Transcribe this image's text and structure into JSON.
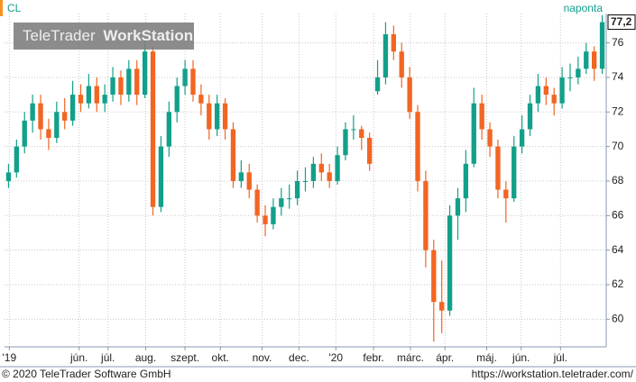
{
  "chart_data": {
    "type": "candlestick",
    "symbol": "CL",
    "interval": "naponta",
    "watermark": [
      "TeleTrader",
      "WorkStation"
    ],
    "footer_left": "© 2020 TeleTrader Software GmbH",
    "footer_right": "https://workstation.teletrader.com/",
    "up_color": "#12a08a",
    "down_color": "#f26522",
    "ylim": [
      58.4,
      77.7
    ],
    "yticks": [
      60,
      62,
      64,
      66,
      68,
      70,
      72,
      74,
      76
    ],
    "grid": true,
    "last_price": {
      "value": 77.2,
      "label": "77,2"
    },
    "xlim": [
      0,
      75
    ],
    "xticks": [
      {
        "value": 0.6,
        "label": "'19"
      },
      {
        "value": 9.3,
        "label": "jún."
      },
      {
        "value": 12.9,
        "label": "júl."
      },
      {
        "value": 17.6,
        "label": "aug."
      },
      {
        "value": 22.5,
        "label": "szept."
      },
      {
        "value": 26.9,
        "label": "okt."
      },
      {
        "value": 32.1,
        "label": "nov."
      },
      {
        "value": 36.7,
        "label": "dec."
      },
      {
        "value": 41.3,
        "label": "'20"
      },
      {
        "value": 46,
        "label": "febr."
      },
      {
        "value": 50.6,
        "label": "márc."
      },
      {
        "value": 54.9,
        "label": "ápr."
      },
      {
        "value": 60.1,
        "label": "máj."
      },
      {
        "value": 64.4,
        "label": "jún."
      },
      {
        "value": 69.3,
        "label": "júl."
      }
    ],
    "open": [
      68,
      68.5,
      70,
      71.5,
      72.5,
      71,
      70.5,
      72,
      71.5,
      73,
      72.5,
      73.5,
      72.5,
      73,
      74,
      73,
      74.5,
      73,
      75.5,
      66.5,
      70,
      72,
      73.5,
      74.5,
      73,
      72.5,
      71,
      72.5,
      71,
      68,
      68.5,
      67.5,
      66,
      65.5,
      66.5,
      67,
      67,
      68,
      68,
      69,
      68.5,
      68,
      69.5,
      71,
      71,
      70.5,
      73.2,
      74,
      76.5,
      75.5,
      74,
      72,
      68,
      64,
      61,
      60.5,
      66,
      67,
      69,
      72.5,
      71,
      70,
      67.5,
      67,
      70,
      71,
      72.5,
      73.5,
      73,
      72.5,
      74,
      74,
      74.5,
      75.5,
      74.5
    ],
    "high": [
      69,
      70.4,
      72,
      73,
      73,
      71.6,
      72.6,
      72.8,
      73.8,
      73.6,
      74.2,
      74,
      73.6,
      74.6,
      74.4,
      75,
      75,
      76.5,
      75.8,
      70.6,
      72.6,
      74,
      75,
      75,
      73.6,
      73,
      73,
      72.8,
      71.4,
      69.2,
      69,
      67.8,
      66.6,
      67,
      67.6,
      67.8,
      68.6,
      68.8,
      69.4,
      69.6,
      69,
      70,
      71.4,
      71.8,
      71.2,
      70.8,
      75,
      77.2,
      77,
      76,
      74.6,
      72.4,
      68.6,
      64.6,
      63.4,
      66.6,
      67.6,
      69.8,
      73.4,
      73,
      71.4,
      70.4,
      68,
      70.6,
      71.8,
      73,
      74.2,
      74,
      73.4,
      74.6,
      74.8,
      75.2,
      76,
      75.8,
      77.6
    ],
    "low": [
      67.6,
      68.2,
      69.6,
      70.8,
      70.4,
      69.8,
      70.2,
      71,
      71.2,
      72,
      72.2,
      72,
      72,
      72.6,
      72.4,
      72.6,
      72.4,
      72.8,
      66,
      66.2,
      69.4,
      71.4,
      73,
      72.6,
      71.8,
      70.4,
      70.6,
      70.4,
      67.6,
      67.6,
      67,
      65.6,
      64.8,
      65.2,
      66,
      66.4,
      66.6,
      67.4,
      67.6,
      68,
      67.6,
      67.8,
      69.2,
      70.4,
      69.8,
      68.6,
      73,
      73.6,
      75,
      73.4,
      71.6,
      67.4,
      63,
      58.7,
      59.2,
      60.2,
      64.6,
      66.2,
      68.8,
      70.4,
      69.4,
      67,
      65.6,
      66.8,
      69.6,
      70.6,
      72,
      72.4,
      71.8,
      72.2,
      73.2,
      73.6,
      74.2,
      73.8,
      74.2
    ],
    "close": [
      68.5,
      70,
      71.5,
      72.5,
      71,
      70.5,
      72,
      71.5,
      73,
      72.5,
      73.5,
      72.5,
      73,
      74,
      73,
      74.5,
      73,
      75.5,
      66.5,
      70,
      72,
      73.5,
      74.5,
      73,
      72.5,
      71,
      72.5,
      71,
      68,
      68.5,
      67.5,
      66,
      65.5,
      66.5,
      67,
      67,
      68,
      68,
      69,
      68.5,
      68,
      69.5,
      71,
      71,
      70.5,
      69,
      74,
      76.5,
      75.5,
      74,
      72,
      68,
      64,
      61,
      60.5,
      66,
      67,
      69,
      72.5,
      71,
      70,
      67.5,
      67,
      70,
      71,
      72.5,
      73.5,
      73,
      72.5,
      74,
      74,
      74.5,
      75.5,
      74.5,
      77.2
    ]
  }
}
